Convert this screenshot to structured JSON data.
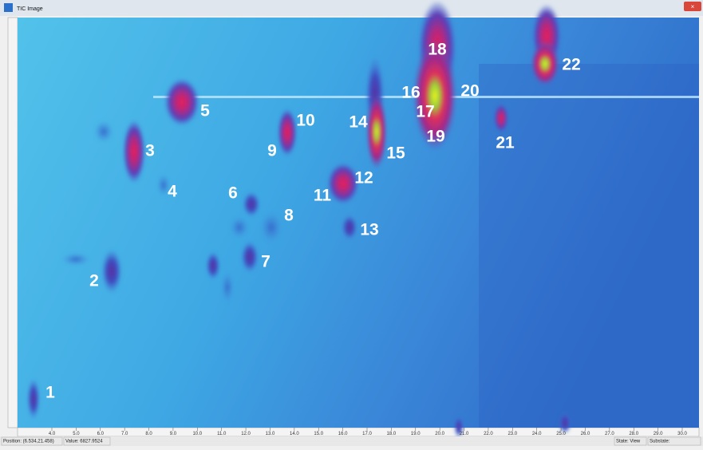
{
  "window": {
    "title": "TIC Image"
  },
  "peaks": {
    "labels": [
      "1",
      "2",
      "3",
      "4",
      "5",
      "6",
      "7",
      "8",
      "9",
      "10",
      "11",
      "12",
      "13",
      "14",
      "15",
      "16",
      "17",
      "18",
      "19",
      "20",
      "21",
      "22"
    ]
  },
  "x_axis": {
    "ticks": [
      "4.0",
      "5.0",
      "6.0",
      "7.0",
      "8.0",
      "9.0",
      "10.0",
      "11.0",
      "12.0",
      "13.0",
      "14.0",
      "15.0",
      "16.0",
      "17.0",
      "18.0",
      "19.0",
      "20.0",
      "21.0",
      "22.0",
      "23.0",
      "24.0",
      "25.0",
      "26.0",
      "27.0",
      "28.0",
      "29.0",
      "30.0"
    ]
  },
  "status": {
    "position": "Position: (6.534,21.458)",
    "value": "Value: 6827.9524",
    "state": "State: View",
    "substate": "Substate:"
  }
}
